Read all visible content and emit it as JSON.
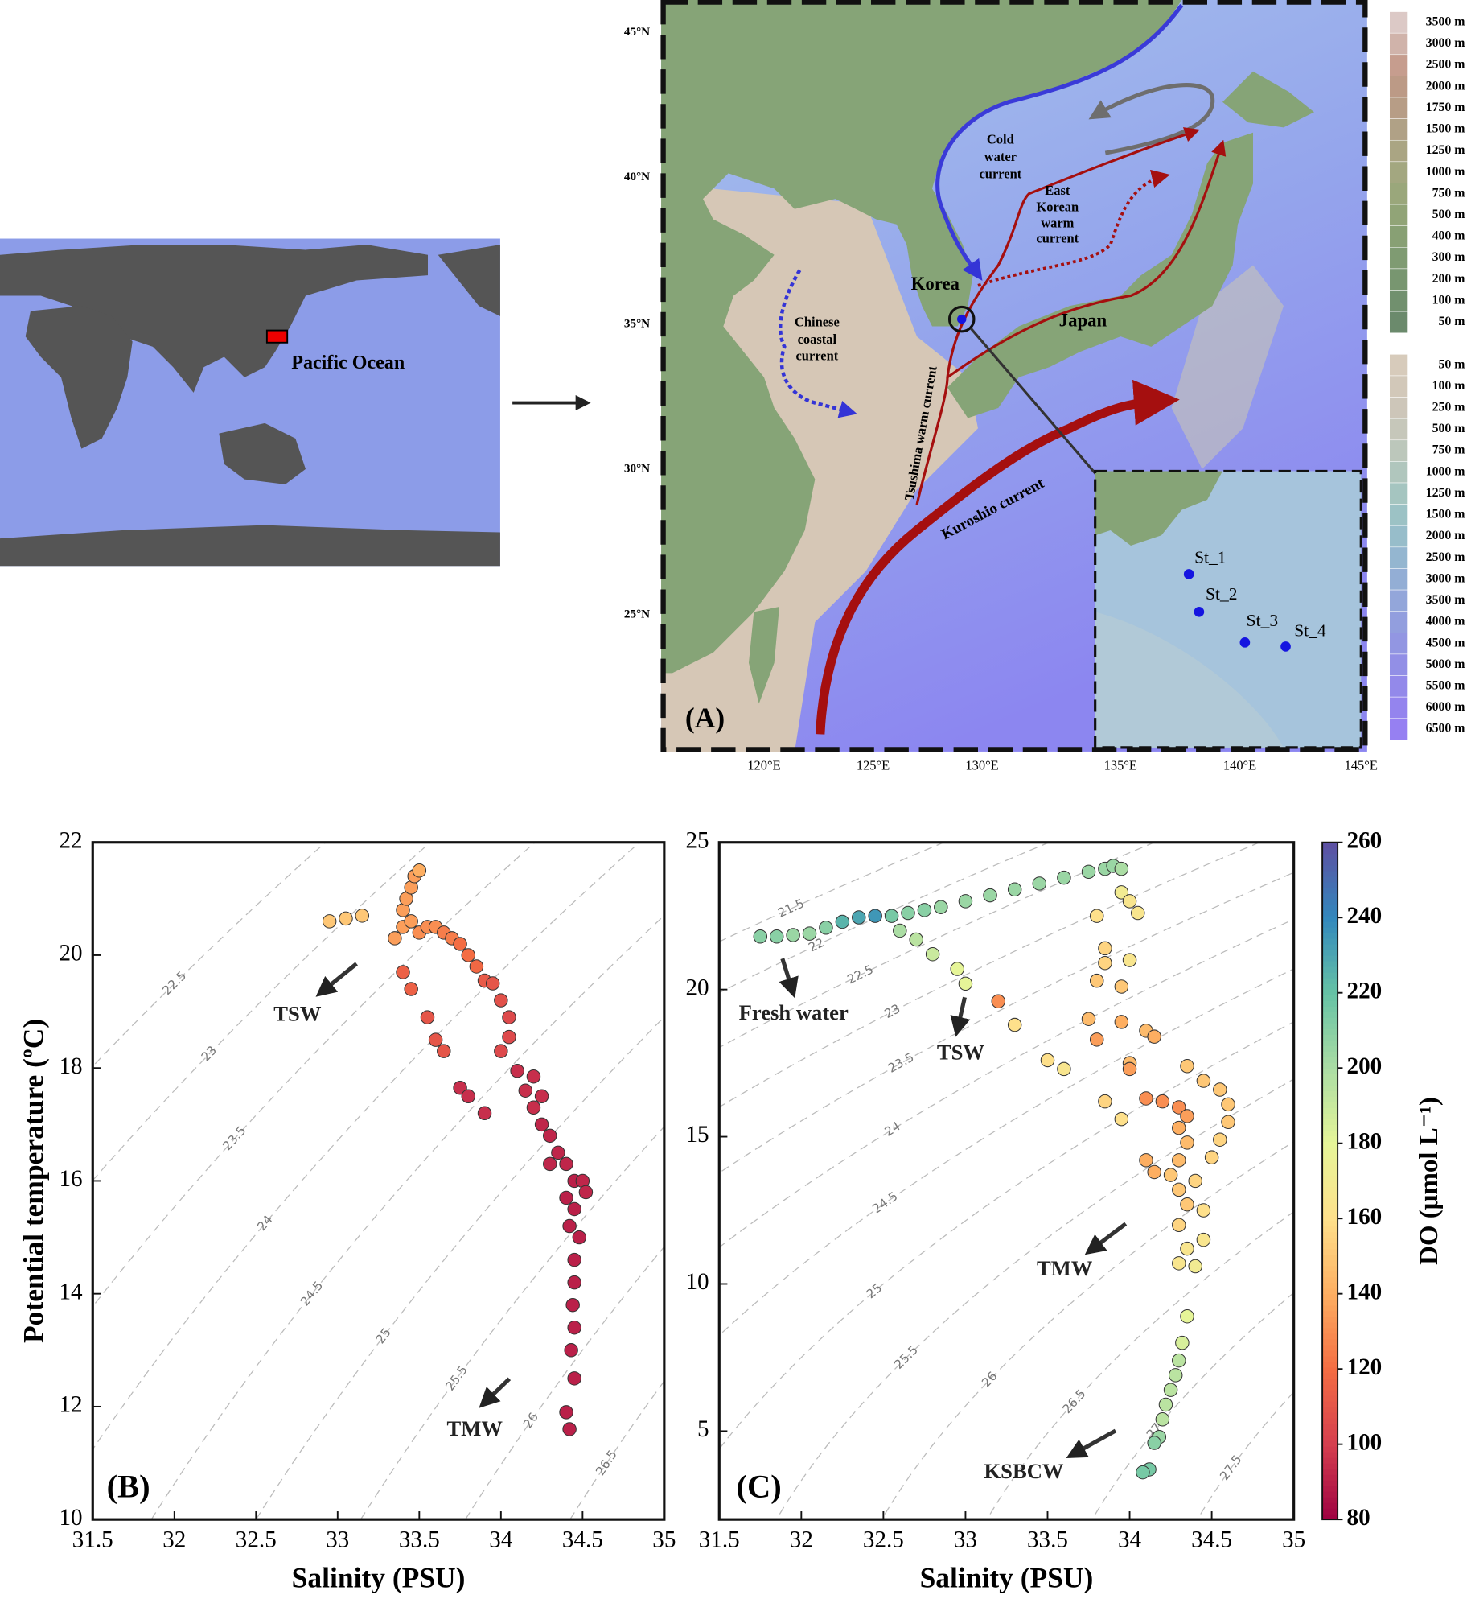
{
  "world_map": {
    "label": "Pacific Ocean"
  },
  "regional_map": {
    "panel_label": "(A)",
    "lat_labels": [
      "45°N",
      "40°N",
      "35°N",
      "30°N",
      "25°N"
    ],
    "lon_labels": [
      "120°E",
      "125°E",
      "130°E",
      "135°E",
      "140°E",
      "145°E"
    ],
    "place_labels": {
      "korea": "Korea",
      "japan": "Japan"
    },
    "current_labels": {
      "cold_water": [
        "Cold",
        "water",
        "current"
      ],
      "east_korean": [
        "East",
        "Korean",
        "warm",
        "current"
      ],
      "chinese_coastal": [
        "Chinese",
        "coastal",
        "current"
      ],
      "tsushima": "Tsushima warm current",
      "kuroshio": "Kuroshio current"
    },
    "stations": [
      "St_1",
      "St_2",
      "St_3",
      "St_4"
    ],
    "elevation_legend": [
      {
        "label": "3500 m",
        "color": "#dcc9c6"
      },
      {
        "label": "3000 m",
        "color": "#d0b3aa"
      },
      {
        "label": "2500 m",
        "color": "#c69d8e"
      },
      {
        "label": "2000 m",
        "color": "#bc9a86"
      },
      {
        "label": "1750 m",
        "color": "#b79d86"
      },
      {
        "label": "1500 m",
        "color": "#b0a186"
      },
      {
        "label": "1250 m",
        "color": "#aaa583"
      },
      {
        "label": "1000 m",
        "color": "#a3a780"
      },
      {
        "label": "750 m",
        "color": "#9aa77b"
      },
      {
        "label": "500 m",
        "color": "#91a477"
      },
      {
        "label": "400 m",
        "color": "#88a074"
      },
      {
        "label": "300 m",
        "color": "#7f9b72"
      },
      {
        "label": "200 m",
        "color": "#789670"
      },
      {
        "label": "100 m",
        "color": "#71906e"
      },
      {
        "label": "50 m",
        "color": "#6b8a6c"
      }
    ],
    "depth_legend": [
      {
        "label": "50 m",
        "color": "#d7cbbb"
      },
      {
        "label": "100 m",
        "color": "#d2c8b9"
      },
      {
        "label": "250 m",
        "color": "#cdc6b9"
      },
      {
        "label": "500 m",
        "color": "#c6c7ba"
      },
      {
        "label": "750 m",
        "color": "#bcc7bb"
      },
      {
        "label": "1000 m",
        "color": "#b0c6bd"
      },
      {
        "label": "1250 m",
        "color": "#a5c5c0"
      },
      {
        "label": "1500 m",
        "color": "#9cc2c5"
      },
      {
        "label": "2000 m",
        "color": "#97bdca"
      },
      {
        "label": "2500 m",
        "color": "#94b6d0"
      },
      {
        "label": "3000 m",
        "color": "#93aed5"
      },
      {
        "label": "3500 m",
        "color": "#93a6da"
      },
      {
        "label": "4000 m",
        "color": "#929ede"
      },
      {
        "label": "4500 m",
        "color": "#9296e2"
      },
      {
        "label": "5000 m",
        "color": "#928fe6"
      },
      {
        "label": "5500 m",
        "color": "#9389ea"
      },
      {
        "label": "6000 m",
        "color": "#9484ee"
      },
      {
        "label": "6500 m",
        "color": "#9680f2"
      }
    ]
  },
  "chart_data": [
    {
      "type": "scatter",
      "panel_label": "(B)",
      "xlabel": "Salinity (PSU)",
      "ylabel": "Potential temperature (ºC)",
      "xlim": [
        31.5,
        35
      ],
      "ylim": [
        10,
        22
      ],
      "xticks": [
        31.5,
        32,
        32.5,
        33,
        33.5,
        34,
        34.5,
        35
      ],
      "yticks": [
        10,
        12,
        14,
        16,
        18,
        20,
        22
      ],
      "isopycnals": [
        22.5,
        23,
        23.5,
        24,
        24.5,
        25,
        25.5,
        26,
        26.5
      ],
      "annotations": [
        "TSW",
        "TMW"
      ],
      "clim": [
        80,
        260
      ],
      "colormap": [
        "#9e0142",
        "#d53e4f",
        "#f46d43",
        "#fdae61",
        "#fee08b",
        "#e6f598",
        "#abdda4",
        "#66c2a5",
        "#3288bd",
        "#5e4fa2"
      ],
      "x": [
        32.95,
        33.05,
        33.15,
        33.35,
        33.4,
        33.4,
        33.42,
        33.45,
        33.47,
        33.5,
        33.45,
        33.5,
        33.55,
        33.6,
        33.65,
        33.7,
        33.75,
        33.8,
        33.85,
        33.4,
        33.45,
        33.55,
        33.6,
        33.65,
        33.9,
        33.95,
        34.0,
        34.05,
        34.05,
        34.0,
        33.75,
        33.8,
        33.9,
        34.1,
        34.2,
        34.15,
        34.25,
        34.2,
        34.25,
        34.3,
        34.35,
        34.4,
        34.45,
        34.4,
        34.45,
        34.42,
        34.48,
        34.45,
        34.45,
        34.44,
        34.45,
        34.43,
        34.45,
        34.4,
        34.42,
        34.5,
        34.52,
        34.3
      ],
      "values": [
        20.6,
        20.65,
        20.7,
        20.3,
        20.5,
        20.8,
        21.0,
        21.2,
        21.4,
        21.5,
        20.6,
        20.4,
        20.5,
        20.5,
        20.4,
        20.3,
        20.2,
        20.0,
        19.8,
        19.7,
        19.4,
        18.9,
        18.5,
        18.3,
        19.55,
        19.5,
        19.2,
        18.9,
        18.55,
        18.3,
        17.65,
        17.5,
        17.2,
        17.95,
        17.85,
        17.6,
        17.5,
        17.3,
        17.0,
        16.8,
        16.5,
        16.3,
        16.0,
        15.7,
        15.5,
        15.2,
        15.0,
        14.6,
        14.2,
        13.8,
        13.4,
        13.0,
        12.5,
        11.9,
        11.6,
        16.0,
        15.8,
        16.3
      ],
      "color_values": [
        150,
        150,
        150,
        135,
        135,
        135,
        135,
        135,
        135,
        140,
        135,
        130,
        130,
        130,
        125,
        125,
        120,
        120,
        118,
        115,
        115,
        110,
        110,
        110,
        112,
        110,
        108,
        105,
        105,
        105,
        95,
        95,
        95,
        95,
        95,
        95,
        95,
        95,
        92,
        92,
        92,
        92,
        90,
        90,
        90,
        90,
        90,
        90,
        90,
        90,
        90,
        90,
        90,
        90,
        90,
        92,
        92,
        92
      ]
    },
    {
      "type": "scatter",
      "panel_label": "(C)",
      "xlabel": "Salinity (PSU)",
      "xlim": [
        31.5,
        35
      ],
      "ylim": [
        2,
        25
      ],
      "xticks": [
        31.5,
        32,
        32.5,
        33,
        33.5,
        34,
        34.5,
        35
      ],
      "yticks": [
        5,
        10,
        15,
        20,
        25
      ],
      "isopycnals": [
        21.5,
        22,
        22.5,
        23,
        23.5,
        24,
        24.5,
        25,
        25.5,
        26,
        26.5,
        27,
        27.5
      ],
      "annotations": [
        "Fresh water",
        "TSW",
        "TMW",
        "KSBCW"
      ],
      "clim": [
        80,
        260
      ],
      "colormap": [
        "#9e0142",
        "#d53e4f",
        "#f46d43",
        "#fdae61",
        "#fee08b",
        "#e6f598",
        "#abdda4",
        "#66c2a5",
        "#3288bd",
        "#5e4fa2"
      ],
      "colorbar_label": "DO (μmol L⁻¹)",
      "colorbar_ticks": [
        80,
        100,
        120,
        140,
        160,
        180,
        200,
        220,
        240,
        260
      ],
      "x": [
        31.75,
        31.85,
        31.95,
        32.05,
        32.15,
        32.25,
        32.35,
        32.45,
        32.55,
        32.65,
        32.75,
        32.85,
        33.0,
        33.15,
        33.3,
        33.45,
        33.6,
        33.75,
        33.85,
        33.9,
        33.95,
        32.6,
        32.7,
        32.8,
        32.95,
        33.0,
        33.2,
        33.3,
        33.95,
        34.0,
        34.05,
        33.8,
        33.85,
        33.85,
        34.0,
        33.8,
        33.95,
        33.75,
        33.95,
        34.1,
        34.15,
        34.0,
        33.5,
        33.6,
        33.8,
        33.85,
        33.95,
        34.0,
        34.1,
        34.2,
        34.3,
        34.35,
        34.3,
        34.35,
        34.3,
        34.25,
        34.3,
        34.35,
        34.3,
        34.35,
        34.3,
        34.4,
        34.35,
        34.45,
        34.55,
        34.6,
        34.6,
        34.55,
        34.5,
        34.4,
        34.45,
        34.45,
        34.1,
        34.15,
        34.35,
        34.32,
        34.3,
        34.28,
        34.25,
        34.22,
        34.2,
        34.18,
        34.15,
        34.12,
        34.08
      ],
      "values": [
        21.8,
        21.8,
        21.85,
        21.9,
        22.1,
        22.3,
        22.45,
        22.5,
        22.5,
        22.6,
        22.7,
        22.8,
        23.0,
        23.2,
        23.4,
        23.6,
        23.8,
        24.0,
        24.1,
        24.2,
        24.1,
        22.0,
        21.7,
        21.2,
        20.7,
        20.2,
        19.6,
        18.8,
        23.3,
        23.0,
        22.6,
        22.5,
        21.4,
        20.9,
        21.0,
        20.3,
        20.1,
        19.0,
        18.9,
        18.6,
        18.4,
        17.5,
        17.6,
        17.3,
        18.3,
        16.2,
        15.6,
        17.3,
        16.3,
        16.2,
        16.0,
        15.7,
        15.3,
        14.8,
        14.2,
        13.7,
        13.2,
        12.7,
        12.0,
        11.2,
        10.7,
        10.6,
        17.4,
        16.9,
        16.6,
        16.1,
        15.5,
        14.9,
        14.3,
        13.5,
        12.5,
        11.5,
        14.2,
        13.8,
        8.9,
        8.0,
        7.4,
        6.9,
        6.4,
        5.9,
        5.4,
        4.8,
        4.6,
        3.7,
        3.6
      ],
      "color_values": [
        210,
        210,
        205,
        205,
        210,
        225,
        230,
        235,
        215,
        210,
        210,
        205,
        205,
        205,
        205,
        205,
        205,
        205,
        205,
        205,
        200,
        200,
        195,
        190,
        180,
        180,
        130,
        160,
        170,
        165,
        165,
        160,
        155,
        155,
        165,
        150,
        150,
        145,
        140,
        145,
        140,
        145,
        160,
        165,
        135,
        155,
        160,
        135,
        130,
        130,
        130,
        135,
        140,
        145,
        145,
        150,
        150,
        150,
        155,
        165,
        165,
        170,
        150,
        150,
        150,
        150,
        150,
        155,
        155,
        155,
        160,
        165,
        140,
        140,
        180,
        185,
        195,
        195,
        195,
        195,
        195,
        205,
        210,
        215,
        215
      ]
    }
  ]
}
